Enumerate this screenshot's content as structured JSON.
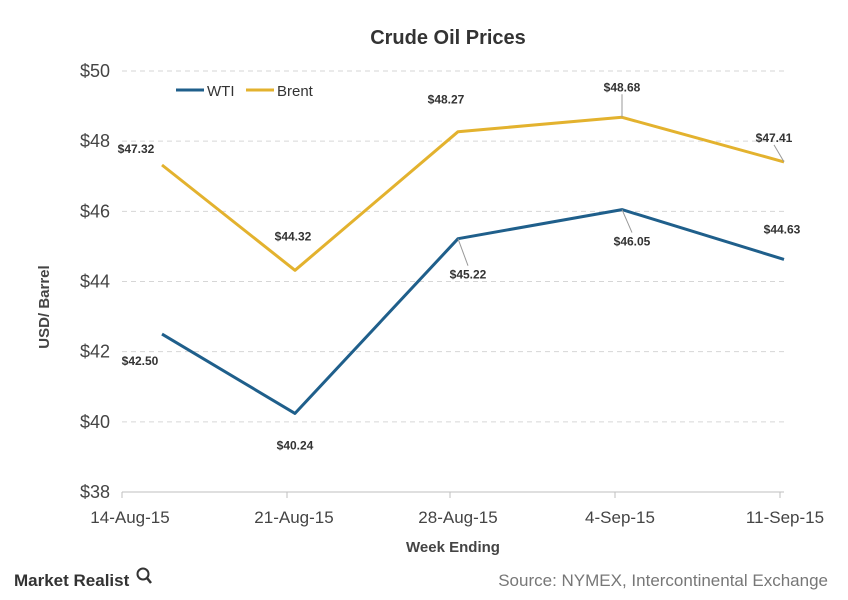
{
  "chart_data": {
    "type": "line",
    "title": "Crude  Oil  Prices",
    "xlabel": "Week Ending",
    "ylabel": "USD/ Barrel",
    "categories": [
      "14-Aug-15",
      "21-Aug-15",
      "28-Aug-15",
      "4-Sep-15",
      "11-Sep-15"
    ],
    "ylim": [
      38,
      50
    ],
    "yticks": [
      38,
      40,
      42,
      44,
      46,
      48,
      50
    ],
    "ytick_labels": [
      "$38",
      "$40",
      "$42",
      "$44",
      "$46",
      "$48",
      "$50"
    ],
    "grid": true,
    "legend_position": "top-left",
    "series": [
      {
        "name": "WTI",
        "color": "#1f5f8b",
        "values": [
          42.5,
          40.24,
          45.22,
          46.05,
          44.63
        ],
        "labels": [
          "$42.50",
          "$40.24",
          "$45.22",
          "$46.05",
          "$44.63"
        ]
      },
      {
        "name": "Brent",
        "color": "#e3b22e",
        "values": [
          47.32,
          44.32,
          48.27,
          48.68,
          47.41
        ],
        "labels": [
          "$47.32",
          "$44.32",
          "$48.27",
          "$48.68",
          "$47.41"
        ]
      }
    ]
  },
  "footer": {
    "brand": "Market Realist",
    "brand_icon": "magnifier-icon",
    "source": "Source: NYMEX, Intercontinental Exchange"
  }
}
